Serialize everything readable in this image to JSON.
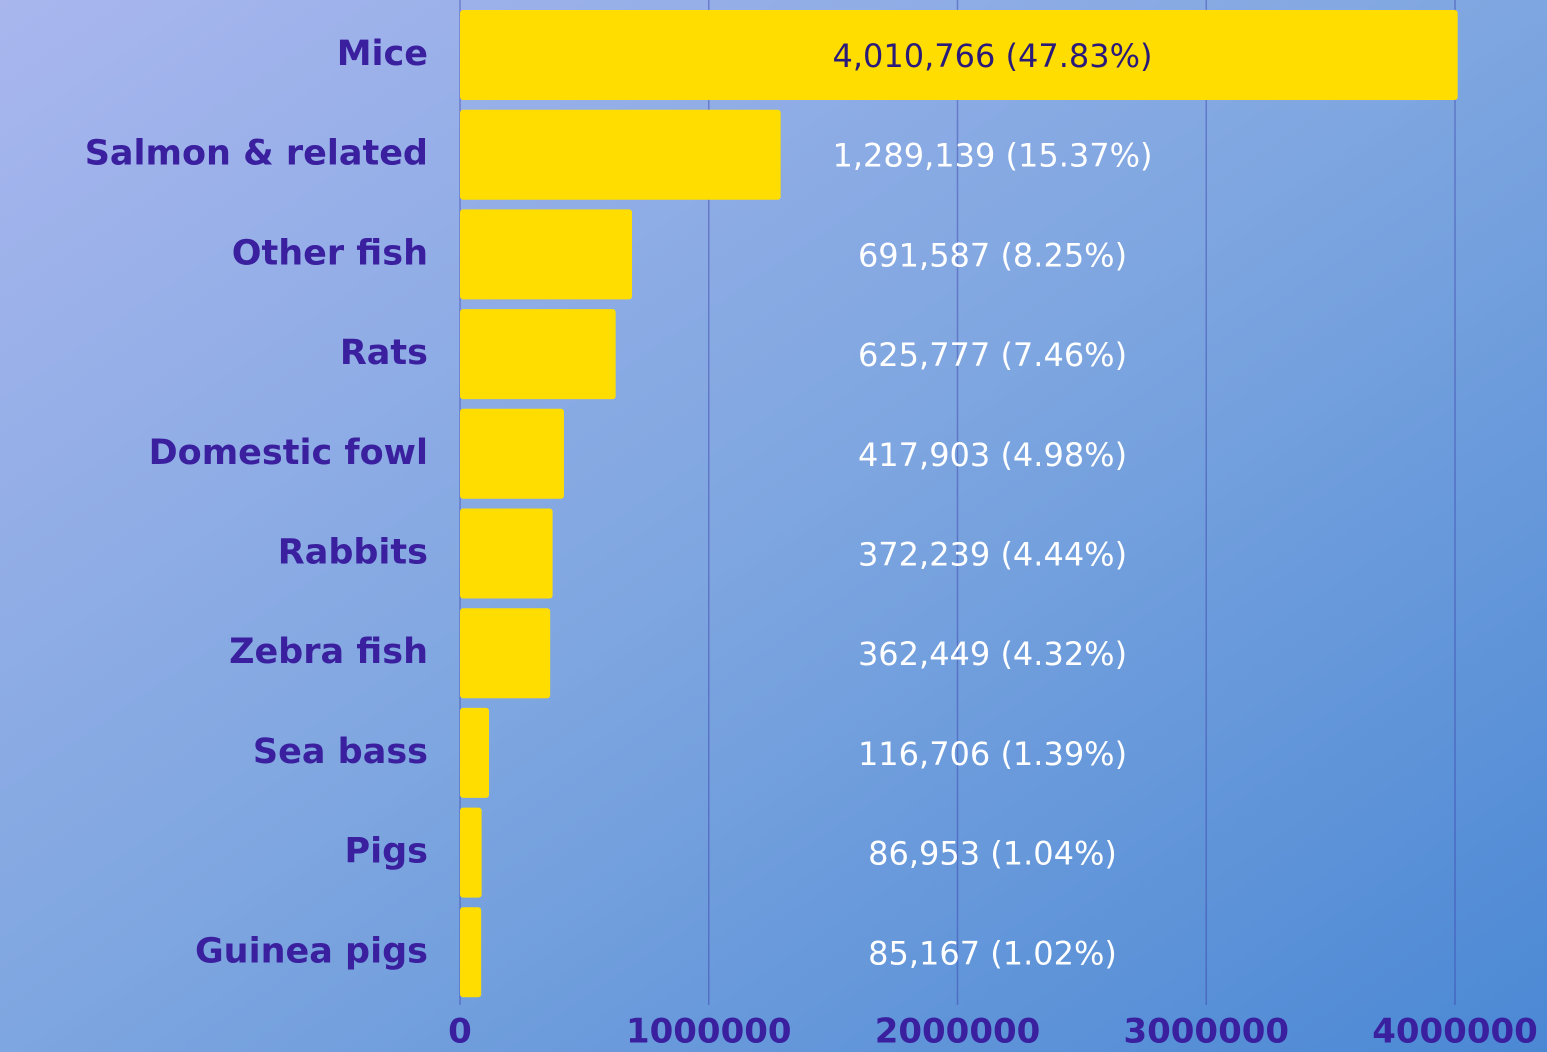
{
  "chart_data": {
    "type": "barh",
    "categories": [
      "Mice",
      "Salmon & related",
      "Other fish",
      "Rats",
      "Domestic fowl",
      "Rabbits",
      "Zebra fish",
      "Sea bass",
      "Pigs",
      "Guinea pigs"
    ],
    "values": [
      4010766,
      1289139,
      691587,
      625777,
      417903,
      372239,
      362449,
      116706,
      86953,
      85167
    ],
    "value_labels": [
      "4,010,766 (47.83%)",
      "1,289,139 (15.37%)",
      "691,587 (8.25%)",
      "625,777 (7.46%)",
      "417,903 (4.98%)",
      "372,239 (4.44%)",
      "362,449 (4.32%)",
      "116,706 (1.39%)",
      "86,953 (1.04%)",
      "85,167 (1.02%)"
    ],
    "color": "#ffdd00",
    "xlim": [
      0,
      4000000
    ],
    "xticks": [
      0,
      1000000,
      2000000,
      3000000,
      4000000
    ],
    "grid": true
  }
}
